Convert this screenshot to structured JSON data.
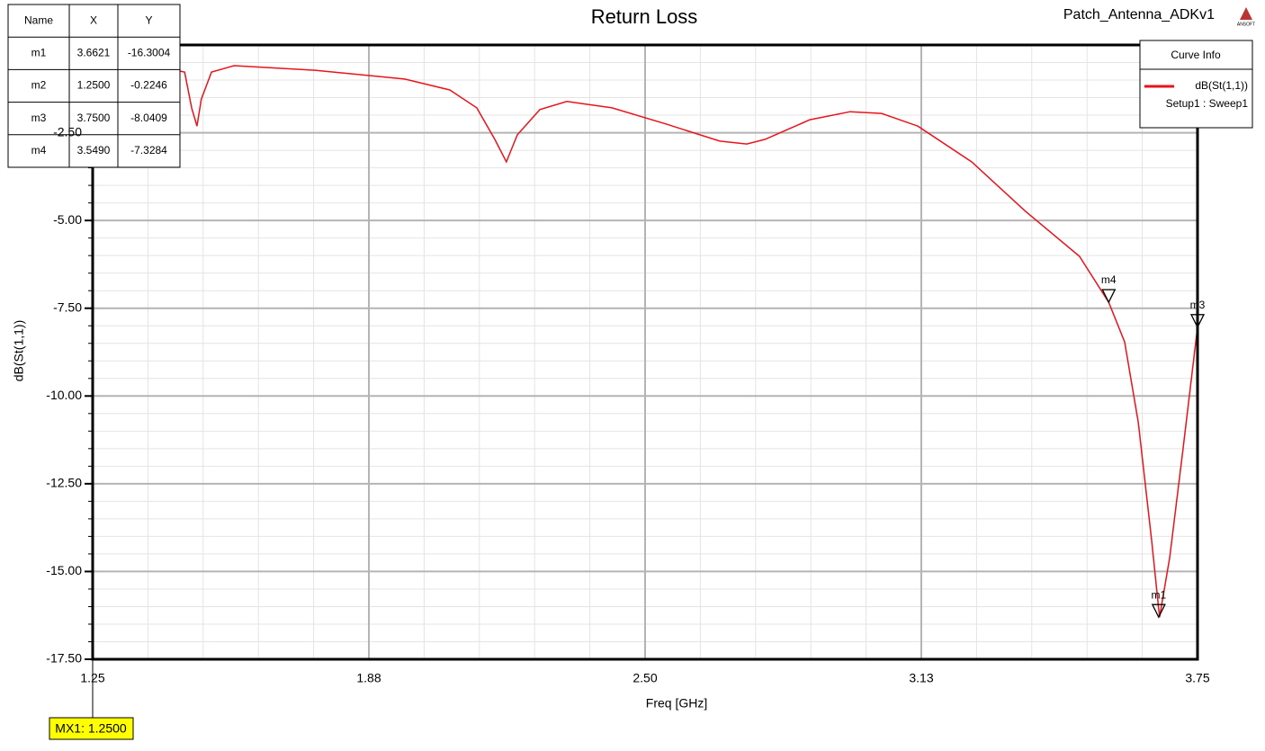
{
  "chart_data": {
    "type": "line",
    "title": "Return Loss",
    "project": "Patch_Antenna_ADKv1",
    "logo": "ANSOFT",
    "x_label": "Freq [GHz]",
    "y_label": "dB(St(1,1))",
    "legend_title": "Curve Info",
    "legend_subtitle": "Setup1 : Sweep1",
    "cursor_label": "MX1: 1.2500",
    "xlim": [
      1.25,
      3.75
    ],
    "xticks": [
      1.25,
      {
        "value": 1.875,
        "label": "1.88"
      },
      {
        "value": 2.5,
        "label": "2.50"
      },
      {
        "value": 3.125,
        "label": "3.13"
      },
      3.75
    ],
    "ylim": [
      -17.5,
      0
    ],
    "yticks": [
      {
        "value": -17.5,
        "label": "-17.50"
      },
      {
        "value": -15,
        "label": "-15.00"
      },
      {
        "value": -12.5,
        "label": "-12.50"
      },
      {
        "value": -10,
        "label": "-10.00"
      },
      {
        "value": -7.5,
        "label": "-7.50"
      },
      {
        "value": -5,
        "label": "-5.00"
      },
      {
        "value": -2.5,
        "label": "-2.50"
      }
    ],
    "grid": true,
    "x": [
      1.25,
      1.458,
      1.474,
      1.486,
      1.496,
      1.519,
      1.57,
      1.753,
      1.956,
      2.058,
      2.119,
      2.16,
      2.186,
      2.211,
      2.262,
      2.323,
      2.425,
      2.547,
      2.669,
      2.73,
      2.771,
      2.873,
      2.964,
      3.035,
      3.117,
      3.239,
      3.361,
      3.483,
      3.549,
      3.585,
      3.616,
      3.646,
      3.664,
      3.687,
      3.717,
      3.75
    ],
    "series": [
      {
        "name": "dB(St(1,1))",
        "color": "#e8131b",
        "values": [
          -0.22,
          -0.77,
          -1.79,
          -2.31,
          -1.54,
          -0.77,
          -0.59,
          -0.72,
          -0.97,
          -1.28,
          -1.79,
          -2.69,
          -3.33,
          -2.56,
          -1.84,
          -1.61,
          -1.79,
          -2.25,
          -2.74,
          -2.82,
          -2.69,
          -2.13,
          -1.9,
          -1.95,
          -2.31,
          -3.33,
          -4.74,
          -6.02,
          -7.33,
          -8.46,
          -10.76,
          -14.09,
          -16.3,
          -14.6,
          -11.53,
          -8.04
        ]
      }
    ],
    "marker_table": {
      "header": [
        "Name",
        "X",
        "Y"
      ],
      "rows": [
        [
          "m1",
          "3.6621",
          "-16.3004"
        ],
        [
          "m2",
          "1.2500",
          "-0.2246"
        ],
        [
          "m3",
          "3.7500",
          "-8.0409"
        ],
        [
          "m4",
          "3.5490",
          "-7.3284"
        ]
      ]
    }
  }
}
